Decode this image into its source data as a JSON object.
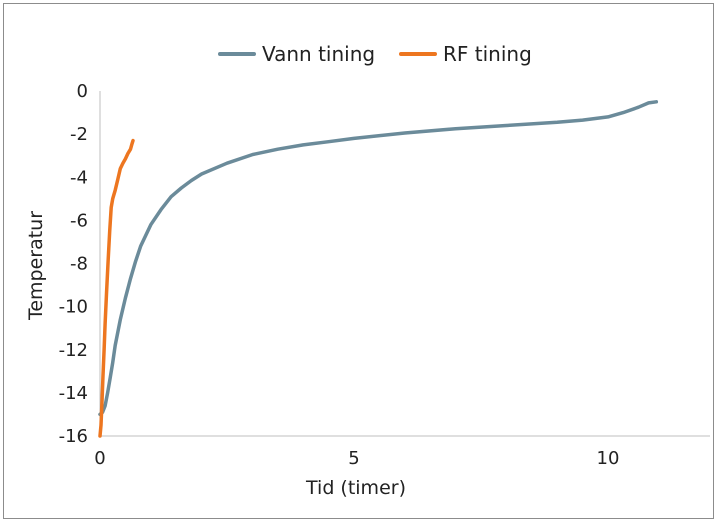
{
  "chart_data": {
    "type": "line",
    "title": "",
    "xlabel": "Tid (timer)",
    "ylabel": "Temperatur",
    "xlim": [
      0,
      12
    ],
    "ylim": [
      -16,
      0
    ],
    "xticks": [
      0,
      5,
      10
    ],
    "yticks": [
      0,
      -2,
      -4,
      -6,
      -8,
      -10,
      -12,
      -14,
      -16
    ],
    "grid": false,
    "legend_position": "top",
    "series": [
      {
        "name": "Vann tining",
        "color": "#6b8b9a",
        "x": [
          0.0,
          0.05,
          0.1,
          0.15,
          0.2,
          0.25,
          0.3,
          0.4,
          0.5,
          0.6,
          0.7,
          0.8,
          0.9,
          1.0,
          1.2,
          1.4,
          1.6,
          1.8,
          2.0,
          2.5,
          3.0,
          3.5,
          4.0,
          4.5,
          5.0,
          6.0,
          7.0,
          8.0,
          9.0,
          9.5,
          10.0,
          10.3,
          10.6,
          10.8,
          10.95
        ],
        "y": [
          -15.0,
          -14.9,
          -14.6,
          -14.0,
          -13.3,
          -12.6,
          -11.8,
          -10.6,
          -9.6,
          -8.7,
          -7.9,
          -7.2,
          -6.7,
          -6.2,
          -5.5,
          -4.9,
          -4.5,
          -4.15,
          -3.85,
          -3.35,
          -2.95,
          -2.7,
          -2.5,
          -2.35,
          -2.2,
          -1.95,
          -1.75,
          -1.6,
          -1.45,
          -1.35,
          -1.2,
          -1.0,
          -0.75,
          -0.55,
          -0.5
        ]
      },
      {
        "name": "RF tining",
        "color": "#ed7620",
        "x": [
          0.0,
          0.02,
          0.04,
          0.06,
          0.08,
          0.1,
          0.13,
          0.16,
          0.19,
          0.22,
          0.25,
          0.3,
          0.35,
          0.4,
          0.45,
          0.5,
          0.55,
          0.6,
          0.63,
          0.65
        ],
        "y": [
          -16.0,
          -15.5,
          -14.4,
          -13.2,
          -12.0,
          -10.8,
          -9.3,
          -7.9,
          -6.5,
          -5.4,
          -5.0,
          -4.6,
          -4.1,
          -3.6,
          -3.35,
          -3.15,
          -2.9,
          -2.7,
          -2.45,
          -2.3
        ]
      }
    ]
  }
}
